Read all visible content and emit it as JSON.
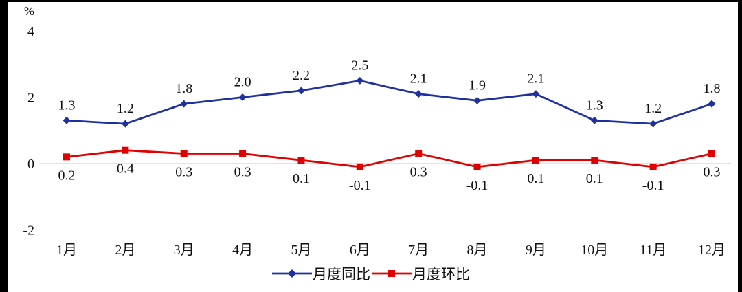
{
  "chart_data": {
    "type": "line",
    "title": "",
    "xlabel": "",
    "ylabel": "%",
    "ylim": [
      -2,
      4
    ],
    "grid": false,
    "legend_position": "bottom",
    "categories": [
      "1月",
      "2月",
      "3月",
      "4月",
      "5月",
      "6月",
      "7月",
      "8月",
      "9月",
      "10月",
      "11月",
      "12月"
    ],
    "yticks": [
      {
        "label": "4",
        "v": 4
      },
      {
        "label": "2",
        "v": 2
      },
      {
        "label": "0",
        "v": 0
      },
      {
        "label": "-2",
        "v": -2
      }
    ],
    "series": [
      {
        "name": "月度同比",
        "color": "#1f31a0",
        "marker": "diamond",
        "label_pos": "above",
        "values": [
          1.3,
          1.2,
          1.8,
          2.0,
          2.2,
          2.5,
          2.1,
          1.9,
          2.1,
          1.3,
          1.2,
          1.8
        ],
        "labels": [
          "1.3",
          "1.2",
          "1.8",
          "2.0",
          "2.2",
          "2.5",
          "2.1",
          "1.9",
          "2.1",
          "1.3",
          "1.2",
          "1.8"
        ]
      },
      {
        "name": "月度环比",
        "color": "#e00000",
        "marker": "square",
        "label_pos": "below",
        "values": [
          0.2,
          0.4,
          0.3,
          0.3,
          0.1,
          -0.1,
          0.3,
          -0.1,
          0.1,
          0.1,
          -0.1,
          0.3
        ],
        "labels": [
          "0.2",
          "0.4",
          "0.3",
          "0.3",
          "0.1",
          "-0.1",
          "0.3",
          "-0.1",
          "0.1",
          "0.1",
          "-0.1",
          "0.3"
        ]
      }
    ]
  }
}
